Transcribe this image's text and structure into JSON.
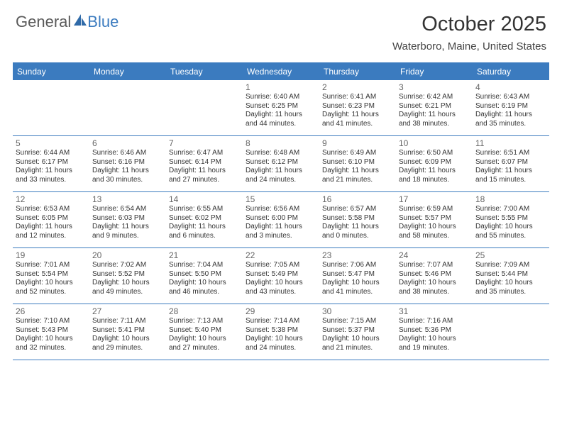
{
  "logo": {
    "text1": "General",
    "text2": "Blue"
  },
  "title": "October 2025",
  "location": "Waterboro, Maine, United States",
  "accent_color": "#3b7bbf",
  "dow": [
    "Sunday",
    "Monday",
    "Tuesday",
    "Wednesday",
    "Thursday",
    "Friday",
    "Saturday"
  ],
  "weeks": [
    [
      null,
      null,
      null,
      {
        "n": "1",
        "sr": "Sunrise: 6:40 AM",
        "ss": "Sunset: 6:25 PM",
        "d1": "Daylight: 11 hours",
        "d2": "and 44 minutes."
      },
      {
        "n": "2",
        "sr": "Sunrise: 6:41 AM",
        "ss": "Sunset: 6:23 PM",
        "d1": "Daylight: 11 hours",
        "d2": "and 41 minutes."
      },
      {
        "n": "3",
        "sr": "Sunrise: 6:42 AM",
        "ss": "Sunset: 6:21 PM",
        "d1": "Daylight: 11 hours",
        "d2": "and 38 minutes."
      },
      {
        "n": "4",
        "sr": "Sunrise: 6:43 AM",
        "ss": "Sunset: 6:19 PM",
        "d1": "Daylight: 11 hours",
        "d2": "and 35 minutes."
      }
    ],
    [
      {
        "n": "5",
        "sr": "Sunrise: 6:44 AM",
        "ss": "Sunset: 6:17 PM",
        "d1": "Daylight: 11 hours",
        "d2": "and 33 minutes."
      },
      {
        "n": "6",
        "sr": "Sunrise: 6:46 AM",
        "ss": "Sunset: 6:16 PM",
        "d1": "Daylight: 11 hours",
        "d2": "and 30 minutes."
      },
      {
        "n": "7",
        "sr": "Sunrise: 6:47 AM",
        "ss": "Sunset: 6:14 PM",
        "d1": "Daylight: 11 hours",
        "d2": "and 27 minutes."
      },
      {
        "n": "8",
        "sr": "Sunrise: 6:48 AM",
        "ss": "Sunset: 6:12 PM",
        "d1": "Daylight: 11 hours",
        "d2": "and 24 minutes."
      },
      {
        "n": "9",
        "sr": "Sunrise: 6:49 AM",
        "ss": "Sunset: 6:10 PM",
        "d1": "Daylight: 11 hours",
        "d2": "and 21 minutes."
      },
      {
        "n": "10",
        "sr": "Sunrise: 6:50 AM",
        "ss": "Sunset: 6:09 PM",
        "d1": "Daylight: 11 hours",
        "d2": "and 18 minutes."
      },
      {
        "n": "11",
        "sr": "Sunrise: 6:51 AM",
        "ss": "Sunset: 6:07 PM",
        "d1": "Daylight: 11 hours",
        "d2": "and 15 minutes."
      }
    ],
    [
      {
        "n": "12",
        "sr": "Sunrise: 6:53 AM",
        "ss": "Sunset: 6:05 PM",
        "d1": "Daylight: 11 hours",
        "d2": "and 12 minutes."
      },
      {
        "n": "13",
        "sr": "Sunrise: 6:54 AM",
        "ss": "Sunset: 6:03 PM",
        "d1": "Daylight: 11 hours",
        "d2": "and 9 minutes."
      },
      {
        "n": "14",
        "sr": "Sunrise: 6:55 AM",
        "ss": "Sunset: 6:02 PM",
        "d1": "Daylight: 11 hours",
        "d2": "and 6 minutes."
      },
      {
        "n": "15",
        "sr": "Sunrise: 6:56 AM",
        "ss": "Sunset: 6:00 PM",
        "d1": "Daylight: 11 hours",
        "d2": "and 3 minutes."
      },
      {
        "n": "16",
        "sr": "Sunrise: 6:57 AM",
        "ss": "Sunset: 5:58 PM",
        "d1": "Daylight: 11 hours",
        "d2": "and 0 minutes."
      },
      {
        "n": "17",
        "sr": "Sunrise: 6:59 AM",
        "ss": "Sunset: 5:57 PM",
        "d1": "Daylight: 10 hours",
        "d2": "and 58 minutes."
      },
      {
        "n": "18",
        "sr": "Sunrise: 7:00 AM",
        "ss": "Sunset: 5:55 PM",
        "d1": "Daylight: 10 hours",
        "d2": "and 55 minutes."
      }
    ],
    [
      {
        "n": "19",
        "sr": "Sunrise: 7:01 AM",
        "ss": "Sunset: 5:54 PM",
        "d1": "Daylight: 10 hours",
        "d2": "and 52 minutes."
      },
      {
        "n": "20",
        "sr": "Sunrise: 7:02 AM",
        "ss": "Sunset: 5:52 PM",
        "d1": "Daylight: 10 hours",
        "d2": "and 49 minutes."
      },
      {
        "n": "21",
        "sr": "Sunrise: 7:04 AM",
        "ss": "Sunset: 5:50 PM",
        "d1": "Daylight: 10 hours",
        "d2": "and 46 minutes."
      },
      {
        "n": "22",
        "sr": "Sunrise: 7:05 AM",
        "ss": "Sunset: 5:49 PM",
        "d1": "Daylight: 10 hours",
        "d2": "and 43 minutes."
      },
      {
        "n": "23",
        "sr": "Sunrise: 7:06 AM",
        "ss": "Sunset: 5:47 PM",
        "d1": "Daylight: 10 hours",
        "d2": "and 41 minutes."
      },
      {
        "n": "24",
        "sr": "Sunrise: 7:07 AM",
        "ss": "Sunset: 5:46 PM",
        "d1": "Daylight: 10 hours",
        "d2": "and 38 minutes."
      },
      {
        "n": "25",
        "sr": "Sunrise: 7:09 AM",
        "ss": "Sunset: 5:44 PM",
        "d1": "Daylight: 10 hours",
        "d2": "and 35 minutes."
      }
    ],
    [
      {
        "n": "26",
        "sr": "Sunrise: 7:10 AM",
        "ss": "Sunset: 5:43 PM",
        "d1": "Daylight: 10 hours",
        "d2": "and 32 minutes."
      },
      {
        "n": "27",
        "sr": "Sunrise: 7:11 AM",
        "ss": "Sunset: 5:41 PM",
        "d1": "Daylight: 10 hours",
        "d2": "and 29 minutes."
      },
      {
        "n": "28",
        "sr": "Sunrise: 7:13 AM",
        "ss": "Sunset: 5:40 PM",
        "d1": "Daylight: 10 hours",
        "d2": "and 27 minutes."
      },
      {
        "n": "29",
        "sr": "Sunrise: 7:14 AM",
        "ss": "Sunset: 5:38 PM",
        "d1": "Daylight: 10 hours",
        "d2": "and 24 minutes."
      },
      {
        "n": "30",
        "sr": "Sunrise: 7:15 AM",
        "ss": "Sunset: 5:37 PM",
        "d1": "Daylight: 10 hours",
        "d2": "and 21 minutes."
      },
      {
        "n": "31",
        "sr": "Sunrise: 7:16 AM",
        "ss": "Sunset: 5:36 PM",
        "d1": "Daylight: 10 hours",
        "d2": "and 19 minutes."
      },
      null
    ]
  ]
}
